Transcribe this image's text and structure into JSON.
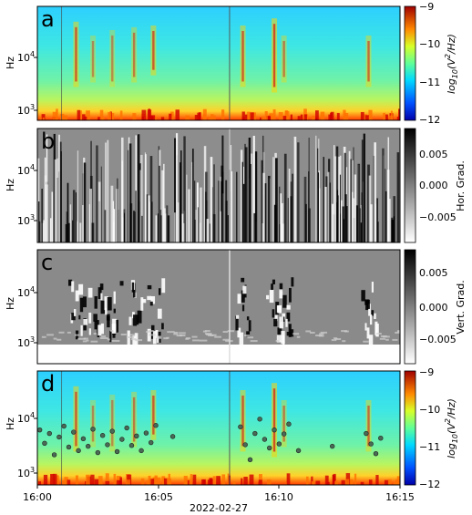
{
  "figure": {
    "date_label": "2022-02-27",
    "x_ticks": [
      "16:00",
      "16:05",
      "16:10",
      "16:15"
    ],
    "y_label": "Hz",
    "y_ticks": [
      {
        "base": "10",
        "exp": "4"
      },
      {
        "base": "10",
        "exp": "3"
      }
    ]
  },
  "chart_data": [
    {
      "panel": "a",
      "type": "heatmap",
      "xlim": [
        "16:00",
        "16:15"
      ],
      "ylim_hz": [
        650,
        65000
      ],
      "y_scale": "log",
      "colormap": "jet",
      "colorbar": {
        "label": "log10(V²/Hz)",
        "range": [
          -12,
          -9
        ],
        "ticks": [
          "−9",
          "−10",
          "−11",
          "−12"
        ]
      },
      "bursts": [
        {
          "t_min": 1.6,
          "f_lo": 2500,
          "f_hi": 35000,
          "strength": 0.9
        },
        {
          "t_min": 2.3,
          "f_lo": 3000,
          "f_hi": 20000,
          "strength": 0.6
        },
        {
          "t_min": 3.1,
          "f_lo": 2500,
          "f_hi": 25000,
          "strength": 0.6
        },
        {
          "t_min": 4.0,
          "f_lo": 3000,
          "f_hi": 28000,
          "strength": 0.7
        },
        {
          "t_min": 4.8,
          "f_lo": 4000,
          "f_hi": 30000,
          "strength": 0.9
        },
        {
          "t_min": 8.5,
          "f_lo": 2500,
          "f_hi": 30000,
          "strength": 0.9
        },
        {
          "t_min": 9.8,
          "f_lo": 2000,
          "f_hi": 40000,
          "strength": 1.0
        },
        {
          "t_min": 10.2,
          "f_lo": 3000,
          "f_hi": 20000,
          "strength": 0.7
        },
        {
          "t_min": 13.7,
          "f_lo": 2500,
          "f_hi": 20000,
          "strength": 0.8
        }
      ]
    },
    {
      "panel": "b",
      "type": "heatmap",
      "xlim": [
        "16:00",
        "16:15"
      ],
      "colormap": "gray_r",
      "colorbar": {
        "label": "Hor. Grad.",
        "ticks": [
          "0.005",
          "0.000",
          "−0.005"
        ]
      }
    },
    {
      "panel": "c",
      "type": "heatmap",
      "xlim": [
        "16:00",
        "16:15"
      ],
      "colormap": "gray_r",
      "colorbar": {
        "label": "Vert. Grad.",
        "ticks": [
          "0.005",
          "0.000",
          "−0.005"
        ]
      }
    },
    {
      "panel": "d",
      "type": "scatter",
      "xlim": [
        "16:00",
        "16:15"
      ],
      "y_scale": "log",
      "colorbar": {
        "label": "log10(V²/Hz)",
        "range": [
          -12,
          -9
        ],
        "ticks": [
          "−9",
          "−10",
          "−11",
          "−12"
        ]
      },
      "points_t_min_hz": [
        [
          0.1,
          6000
        ],
        [
          0.3,
          3500
        ],
        [
          0.5,
          5200
        ],
        [
          0.7,
          2200
        ],
        [
          0.9,
          4500
        ],
        [
          1.1,
          7000
        ],
        [
          1.3,
          3000
        ],
        [
          1.5,
          5500
        ],
        [
          1.7,
          2600
        ],
        [
          1.9,
          4200
        ],
        [
          2.1,
          3100
        ],
        [
          2.3,
          6200
        ],
        [
          2.5,
          2400
        ],
        [
          2.7,
          4800
        ],
        [
          2.9,
          3300
        ],
        [
          3.1,
          5700
        ],
        [
          3.3,
          2500
        ],
        [
          3.5,
          4100
        ],
        [
          3.7,
          6500
        ],
        [
          3.9,
          3200
        ],
        [
          4.1,
          4700
        ],
        [
          4.3,
          2600
        ],
        [
          4.5,
          5300
        ],
        [
          4.7,
          3600
        ],
        [
          4.9,
          7200
        ],
        [
          5.6,
          4600
        ],
        [
          8.4,
          6800
        ],
        [
          8.6,
          3300
        ],
        [
          8.8,
          1800
        ],
        [
          9.0,
          5200
        ],
        [
          9.2,
          9300
        ],
        [
          9.4,
          4100
        ],
        [
          9.6,
          2900
        ],
        [
          9.8,
          6000
        ],
        [
          10.0,
          3400
        ],
        [
          10.2,
          5100
        ],
        [
          10.4,
          7600
        ],
        [
          10.8,
          2600
        ],
        [
          12.2,
          3100
        ],
        [
          13.6,
          5200
        ],
        [
          13.8,
          3400
        ],
        [
          14.0,
          2300
        ],
        [
          14.2,
          4300
        ]
      ]
    }
  ]
}
